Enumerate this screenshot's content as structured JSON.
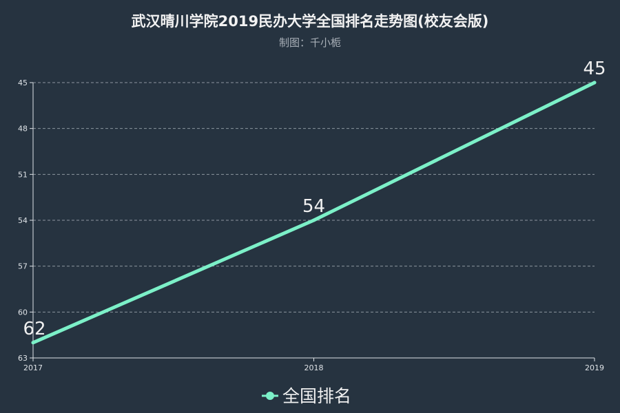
{
  "chart_data": {
    "type": "line",
    "title": "武汉晴川学院2019民办大学全国排名走势图(校友会版)",
    "subtitle": "制图：千小栀",
    "x": [
      "2017",
      "2018",
      "2019"
    ],
    "y_ticks": [
      45,
      48,
      51,
      54,
      57,
      60,
      63
    ],
    "ylim": [
      45,
      63
    ],
    "y_inverted": true,
    "grid": true,
    "legend_position": "bottom-center",
    "series": [
      {
        "name": "全国排名",
        "values": [
          62,
          54,
          45
        ],
        "color": "#7cf0c8"
      }
    ]
  },
  "colors": {
    "background": "#263340",
    "title": "#f2f2f2",
    "subtitle": "#a9b0b8",
    "axis": "#dfe3e7",
    "grid": "#8d969f",
    "label": "#f0f0f0"
  }
}
